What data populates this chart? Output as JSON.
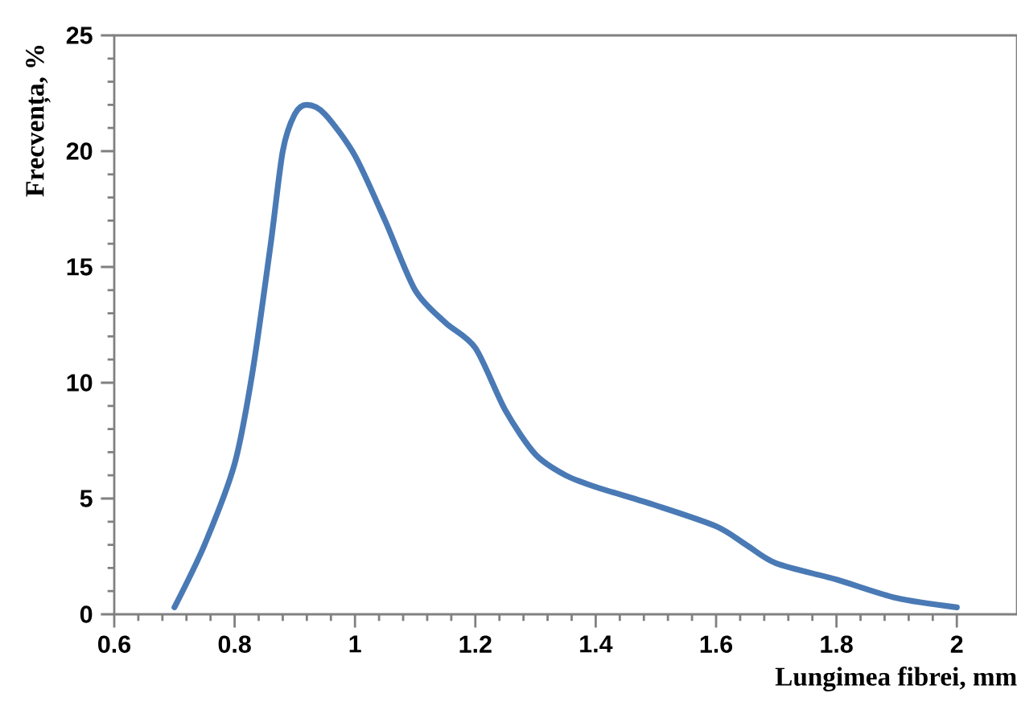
{
  "chart_data": {
    "type": "line",
    "xlabel": "Lungimea fibrei, mm",
    "ylabel": "Frecvența, %",
    "xlim": [
      0.6,
      2.1
    ],
    "xticks": [
      0.6,
      0.8,
      1,
      1.2,
      1.4,
      1.6,
      1.8,
      2
    ],
    "ylim": [
      0,
      25
    ],
    "yticks": [
      0,
      5,
      10,
      15,
      20,
      25
    ],
    "grid": false,
    "marker": "none",
    "line_style": "solid",
    "series": [
      {
        "color": "#4a7ab5",
        "x": [
          0.7,
          0.75,
          0.8,
          0.83,
          0.86,
          0.88,
          0.9,
          0.92,
          0.95,
          1.0,
          1.05,
          1.1,
          1.15,
          1.2,
          1.25,
          1.3,
          1.35,
          1.4,
          1.5,
          1.6,
          1.65,
          1.7,
          1.8,
          1.9,
          2.0
        ],
        "values": [
          0.3,
          3,
          6.5,
          10.5,
          16,
          20,
          21.6,
          22,
          21.6,
          19.8,
          17,
          14,
          12.6,
          11.5,
          8.8,
          6.9,
          6,
          5.5,
          4.7,
          3.8,
          3,
          2.2,
          1.5,
          0.7,
          0.3
        ]
      }
    ]
  }
}
